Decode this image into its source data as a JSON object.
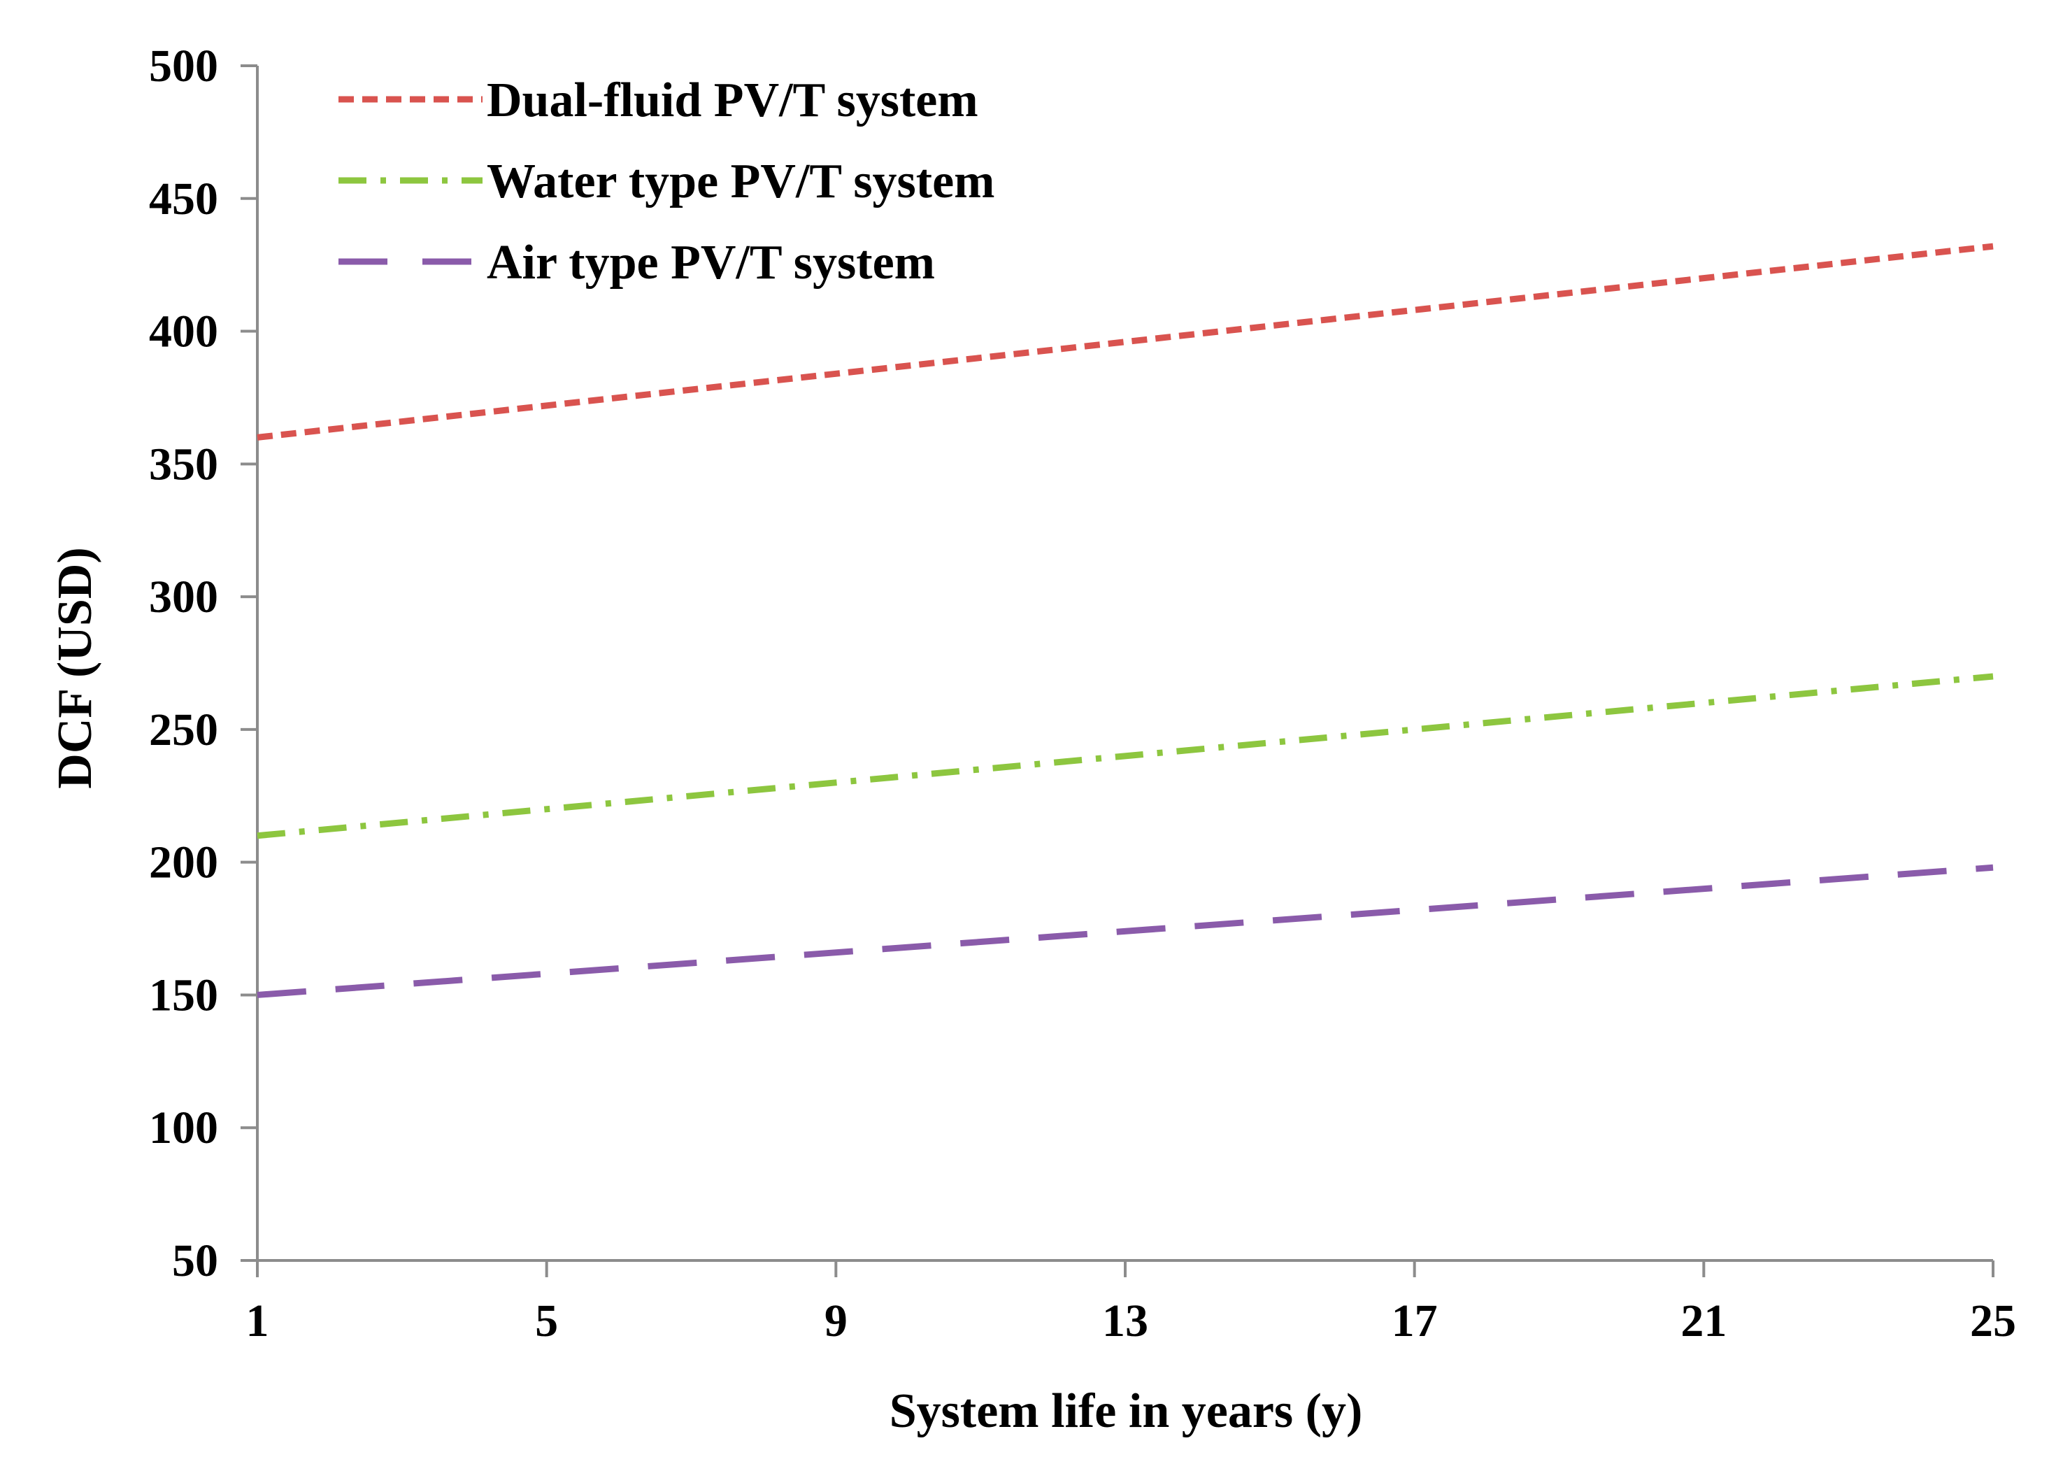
{
  "chart_data": {
    "type": "line",
    "title": "",
    "xlabel": "System life in years  (y)",
    "ylabel": "DCF (USD)",
    "xlim": [
      1,
      25
    ],
    "ylim": [
      50,
      500
    ],
    "x_ticks": [
      1,
      5,
      9,
      13,
      17,
      21,
      25
    ],
    "y_ticks": [
      50,
      100,
      150,
      200,
      250,
      300,
      350,
      400,
      450,
      500
    ],
    "grid": false,
    "legend_position": "top-left",
    "series": [
      {
        "name": "Dual-fluid PV/T system",
        "color": "#D9534F",
        "dash": "short-dash",
        "x": [
          1,
          25
        ],
        "values": [
          360,
          432
        ]
      },
      {
        "name": "Water type  PV/T system",
        "color": "#8DC63F",
        "dash": "dash-dot",
        "x": [
          1,
          25
        ],
        "values": [
          210,
          270
        ]
      },
      {
        "name": "Air type  PV/T system",
        "color": "#8A5BAA",
        "dash": "long-dash",
        "x": [
          1,
          25
        ],
        "values": [
          150,
          198
        ]
      }
    ]
  }
}
